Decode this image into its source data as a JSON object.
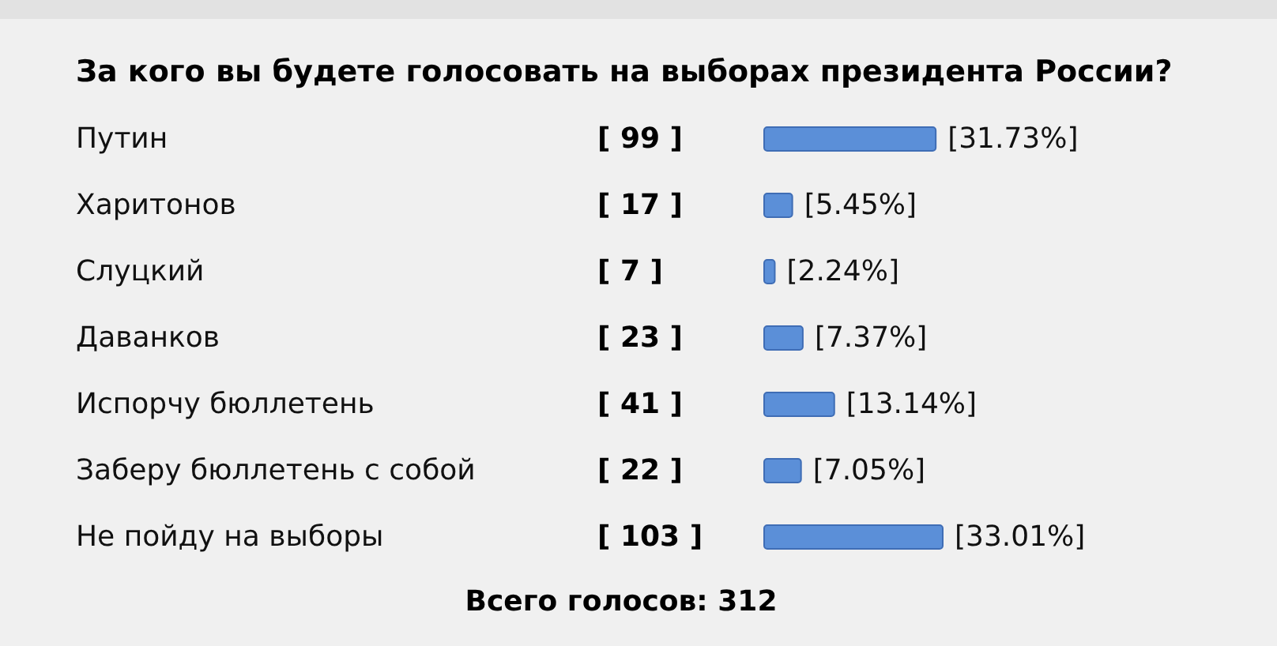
{
  "chart_data": {
    "type": "bar",
    "orientation": "horizontal",
    "title": "За кого вы будете голосовать на выборах президента России?",
    "categories": [
      "Путин",
      "Харитонов",
      "Слуцкий",
      "Даванков",
      "Испорчу бюллетень",
      "Заберу бюллетень с собой",
      "Не пойду на выборы"
    ],
    "y2_categories": [
      "[ 99 ]",
      "[ 17 ]",
      "[ 7 ]",
      "[ 23 ]",
      "[ 41 ]",
      "[ 22 ]",
      "[ 103 ]"
    ],
    "values": [
      31.73,
      5.45,
      2.24,
      7.37,
      13.14,
      7.05,
      33.01
    ],
    "value_labels": [
      "[31.73%]",
      "[5.45%]",
      "[2.24%]",
      "[7.37%]",
      "[13.14%]",
      "[7.05%]",
      "[33.01%]"
    ],
    "color": "#5b8fd8",
    "annotations": [
      "Всего голосов: 312"
    ]
  }
}
